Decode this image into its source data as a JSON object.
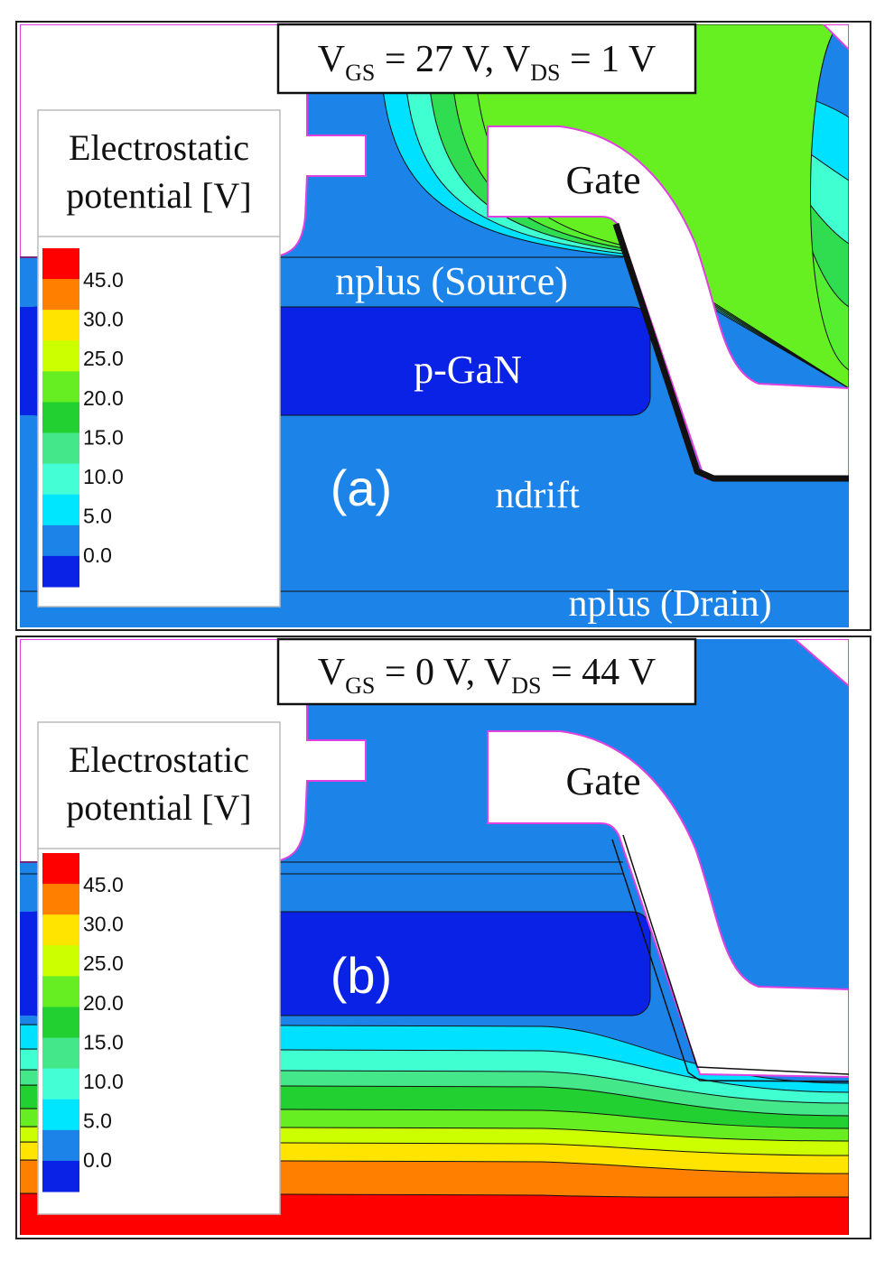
{
  "panels": [
    {
      "condition": [
        "V",
        "GS",
        " = 27 V, V",
        "DS",
        " = 1 V"
      ],
      "legend": {
        "title": [
          "Electrostatic",
          "potential [V]"
        ],
        "labels": [
          "45.0",
          "30.0",
          "25.0",
          "20.0",
          "15.0",
          "10.0",
          "5.0",
          "0.0"
        ]
      },
      "gate": "Gate",
      "regions": [
        "nplus (Source)",
        "p-GaN",
        "ndrift",
        "nplus (Drain)"
      ],
      "label": "(a)"
    },
    {
      "condition": [
        "V",
        "GS",
        " = 0 V, V",
        "DS",
        " = 44 V"
      ],
      "legend": {
        "title": [
          "Electrostatic",
          "potential [V]"
        ],
        "labels": [
          "45.0",
          "30.0",
          "25.0",
          "20.0",
          "15.0",
          "10.0",
          "5.0",
          "0.0"
        ]
      },
      "gate": "Gate",
      "label": "(b)"
    }
  ]
}
